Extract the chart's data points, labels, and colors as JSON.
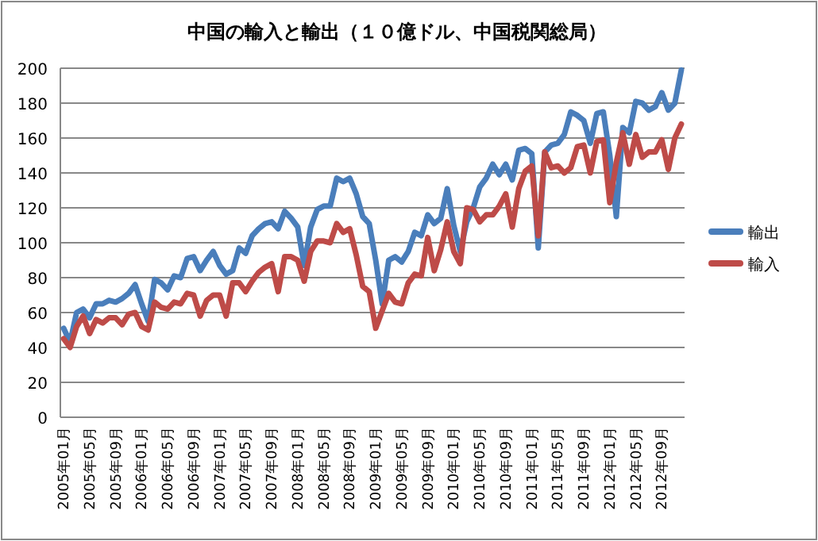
{
  "chart_data": {
    "type": "line",
    "title": "中国の輸入と輸出（１０億ドル、中国税関総局）",
    "categories": [
      "2005年01月",
      null,
      null,
      null,
      "2005年05月",
      null,
      null,
      null,
      "2005年09月",
      null,
      null,
      null,
      "2006年01月",
      null,
      null,
      null,
      "2006年05月",
      null,
      null,
      null,
      "2006年09月",
      null,
      null,
      null,
      "2007年01月",
      null,
      null,
      null,
      "2007年05月",
      null,
      null,
      null,
      "2007年09月",
      null,
      null,
      null,
      "2008年01月",
      null,
      null,
      null,
      "2008年05月",
      null,
      null,
      null,
      "2008年09月",
      null,
      null,
      null,
      "2009年01月",
      null,
      null,
      null,
      "2009年05月",
      null,
      null,
      null,
      "2009年09月",
      null,
      null,
      null,
      "2010年01月",
      null,
      null,
      null,
      "2010年05月",
      null,
      null,
      null,
      "2010年09月",
      null,
      null,
      null,
      "2011年01月",
      null,
      null,
      null,
      "2011年05月",
      null,
      null,
      null,
      "2011年09月",
      null,
      null,
      null,
      "2012年01月",
      null,
      null,
      null,
      "2012年05月",
      null,
      null,
      null,
      "2012年09月",
      null,
      null,
      null
    ],
    "series": [
      {
        "name": "輸出",
        "color": "#4a7ebb",
        "values": [
          51,
          43,
          60,
          62,
          57,
          65,
          65,
          67,
          66,
          68,
          71,
          76,
          65,
          55,
          79,
          77,
          73,
          81,
          80,
          91,
          92,
          84,
          90,
          95,
          87,
          82,
          84,
          97,
          94,
          104,
          108,
          111,
          112,
          108,
          118,
          114,
          109,
          87,
          109,
          119,
          121,
          121,
          137,
          135,
          137,
          128,
          115,
          111,
          90,
          65,
          90,
          92,
          89,
          95,
          106,
          104,
          116,
          111,
          114,
          131,
          110,
          95,
          112,
          120,
          132,
          137,
          145,
          139,
          145,
          136,
          153,
          154,
          151,
          97,
          152,
          156,
          157,
          162,
          175,
          173,
          170,
          157,
          174,
          175,
          150,
          115,
          166,
          163,
          181,
          180,
          176,
          178,
          186,
          176,
          180,
          199
        ]
      },
      {
        "name": "輸入",
        "color": "#be4b48",
        "values": [
          45,
          40,
          52,
          58,
          48,
          56,
          54,
          57,
          57,
          53,
          59,
          60,
          52,
          50,
          66,
          63,
          62,
          66,
          65,
          71,
          70,
          58,
          67,
          70,
          70,
          58,
          77,
          77,
          72,
          78,
          83,
          86,
          88,
          72,
          92,
          92,
          90,
          78,
          95,
          101,
          101,
          100,
          111,
          106,
          108,
          93,
          75,
          72,
          51,
          61,
          71,
          66,
          65,
          77,
          82,
          81,
          103,
          84,
          96,
          112,
          95,
          88,
          120,
          119,
          112,
          116,
          116,
          121,
          128,
          109,
          131,
          141,
          144,
          104,
          152,
          143,
          144,
          140,
          143,
          155,
          156,
          140,
          158,
          159,
          123,
          146,
          163,
          145,
          162,
          149,
          152,
          152,
          159,
          142,
          160,
          168
        ]
      }
    ],
    "ylim": [
      0,
      200
    ],
    "yticks": [
      0,
      20,
      40,
      60,
      80,
      100,
      120,
      140,
      160,
      180,
      200
    ],
    "grid": "y",
    "legend": "right",
    "marker": "none",
    "line_style": "solid"
  }
}
